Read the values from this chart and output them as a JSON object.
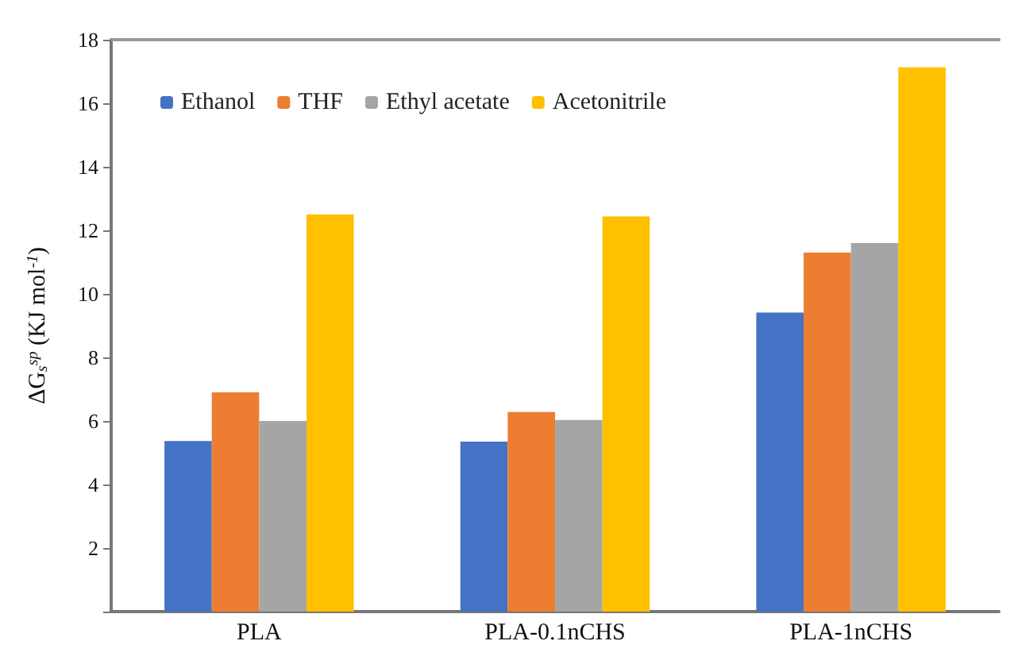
{
  "chart_data": {
    "type": "bar",
    "ylabel": "ΔG$_{s}$$^{sp}$ (KJ mol$^{-1}$)",
    "categories": [
      "PLA",
      "PLA-0.1nCHS",
      "PLA-1nCHS"
    ],
    "series": [
      {
        "name": "Ethanol",
        "color": "#4472c4",
        "values": [
          5.37,
          5.35,
          9.41
        ]
      },
      {
        "name": "THF",
        "color": "#ed7d31",
        "values": [
          6.9,
          6.28,
          11.3
        ]
      },
      {
        "name": "Ethyl acetate",
        "color": "#a5a5a5",
        "values": [
          6.0,
          6.03,
          11.6
        ]
      },
      {
        "name": "Acetonitrile",
        "color": "#ffc000",
        "values": [
          12.5,
          12.44,
          17.13
        ]
      }
    ],
    "ylim": [
      0,
      18
    ],
    "yticks": [
      {
        "value": 0,
        "label": null
      },
      2,
      4,
      6,
      8,
      10,
      12,
      14,
      16,
      18
    ],
    "grid": false,
    "legend": "top left"
  }
}
